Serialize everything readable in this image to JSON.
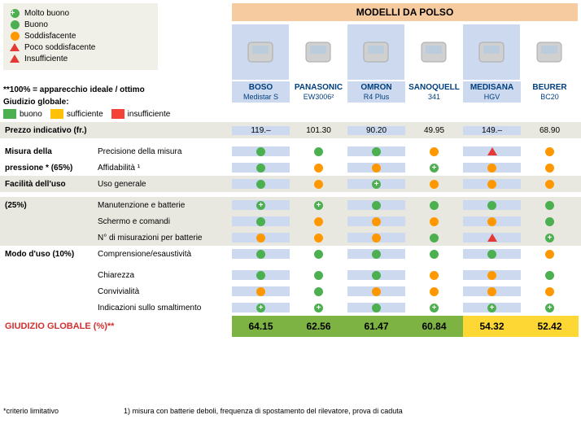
{
  "header": {
    "title": "MODELLI DA POLSO"
  },
  "legend": {
    "items": [
      {
        "sym": "plus-green",
        "label": "Molto buono"
      },
      {
        "sym": "circle-green",
        "label": "Buono"
      },
      {
        "sym": "circle-orange",
        "label": "Soddisfacente"
      },
      {
        "sym": "tri-red",
        "label": "Poco soddisfacente"
      },
      {
        "sym": "tri-red-outline",
        "label": "Insufficiente"
      }
    ]
  },
  "note100": "**100% = apparecchio ideale / ottimo",
  "giudizio_label": "Giudizio globale:",
  "swatches": [
    {
      "cls": "sw-green",
      "label": "buono"
    },
    {
      "cls": "sw-yellow",
      "label": "sufficiente"
    },
    {
      "cls": "sw-red",
      "label": "insufficiente"
    }
  ],
  "products": [
    {
      "brand": "BOSO",
      "model": "Medistar S"
    },
    {
      "brand": "PANASONIC",
      "model": "EW3006²"
    },
    {
      "brand": "OMRON",
      "model": "R4 Plus"
    },
    {
      "brand": "SANOQUELL",
      "model": "341"
    },
    {
      "brand": "MEDISANA",
      "model": "HGV"
    },
    {
      "brand": "BEURER",
      "model": "BC20"
    }
  ],
  "sections": [
    {
      "type": "price",
      "shade": true,
      "label1": "Prezzo indicativo (fr.)",
      "label2": "",
      "cells": [
        "119.–",
        "101.30",
        "90.20",
        "49.95",
        "149.–",
        "68.90"
      ]
    },
    {
      "type": "group",
      "shade": false,
      "label1": "Misura della",
      "label2": "Precisione della misura",
      "icons": [
        "circle-green",
        "circle-green",
        "circle-green",
        "circle-orange",
        "tri-red",
        "circle-orange"
      ]
    },
    {
      "type": "group",
      "shade": false,
      "label1": "pressione * (65%)",
      "label2": "Affidabilità ¹",
      "icons": [
        "circle-green",
        "circle-orange",
        "circle-orange",
        "plus-green",
        "circle-orange",
        "circle-orange"
      ]
    },
    {
      "type": "group",
      "shade": true,
      "label1": "Facilità dell'uso",
      "label2": "Uso generale",
      "icons": [
        "circle-green",
        "circle-orange",
        "plus-green",
        "circle-orange",
        "circle-orange",
        "circle-orange"
      ]
    },
    {
      "type": "group",
      "shade": true,
      "label1": "(25%)",
      "label2": "Manutenzione e batterie",
      "icons": [
        "plus-green",
        "plus-green",
        "circle-green",
        "circle-green",
        "circle-green",
        "circle-green"
      ]
    },
    {
      "type": "group",
      "shade": true,
      "label1": "",
      "label2": "Schermo e comandi",
      "icons": [
        "circle-green",
        "circle-orange",
        "circle-orange",
        "circle-orange",
        "circle-orange",
        "circle-green"
      ]
    },
    {
      "type": "group",
      "shade": true,
      "label1": "",
      "label2": "N° di misurazioni per batterie",
      "icons": [
        "circle-orange",
        "circle-orange",
        "circle-orange",
        "circle-green",
        "tri-red",
        "plus-green"
      ]
    },
    {
      "type": "group",
      "shade": false,
      "label1": "Modo d'uso (10%)",
      "label2": "Comprensione/esaustività",
      "icons": [
        "circle-green",
        "circle-green",
        "circle-green",
        "circle-green",
        "circle-green",
        "circle-orange"
      ]
    },
    {
      "type": "group",
      "shade": false,
      "label1": "",
      "label2": "Chiarezza",
      "icons": [
        "circle-green",
        "circle-green",
        "circle-green",
        "circle-orange",
        "circle-orange",
        "circle-green"
      ]
    },
    {
      "type": "group",
      "shade": false,
      "label1": "",
      "label2": "Convivialità",
      "icons": [
        "circle-orange",
        "circle-green",
        "circle-orange",
        "circle-orange",
        "circle-orange",
        "circle-orange"
      ]
    },
    {
      "type": "group",
      "shade": false,
      "label1": "",
      "label2": "Indicazioni sullo smaltimento",
      "icons": [
        "plus-green",
        "plus-green",
        "circle-green",
        "plus-green",
        "plus-green",
        "plus-green"
      ]
    }
  ],
  "global": {
    "label": "GIUDIZIO GLOBALE (%)**",
    "cells": [
      {
        "val": "64.15",
        "cls": "g-green"
      },
      {
        "val": "62.56",
        "cls": "g-green"
      },
      {
        "val": "61.47",
        "cls": "g-green"
      },
      {
        "val": "60.84",
        "cls": "g-green"
      },
      {
        "val": "54.32",
        "cls": "g-yellow"
      },
      {
        "val": "52.42",
        "cls": "g-yellow"
      }
    ]
  },
  "footnotes": {
    "a": "*criterio limitativo",
    "b": "1) misura con batterie deboli, frequenza di spostamento del rilevatore, prova di caduta"
  },
  "colors": {
    "header_bg": "#f7cba0",
    "col_even": "#cdd9ee",
    "shade": "#e8e8e0",
    "green": "#4caf50",
    "orange": "#ff9800",
    "red": "#e53935",
    "brand": "#003f7f"
  }
}
